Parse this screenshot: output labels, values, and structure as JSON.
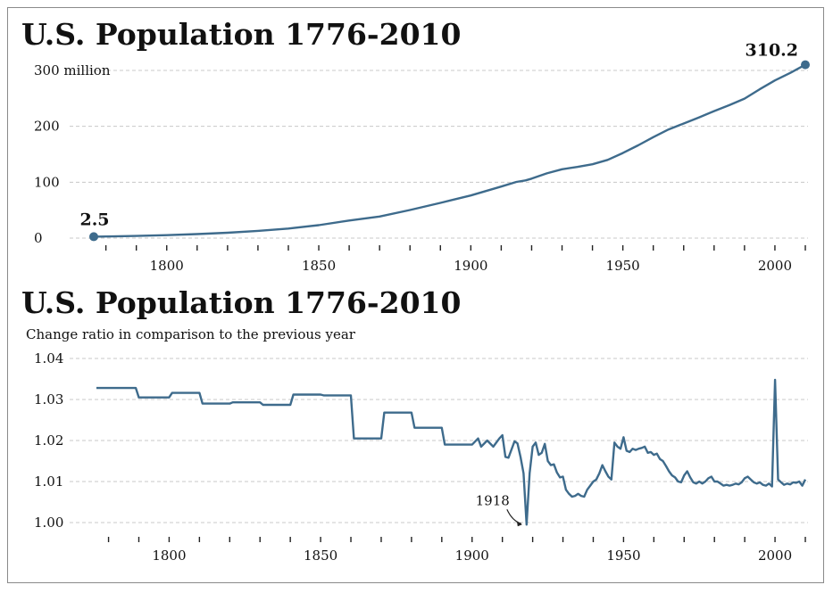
{
  "colors": {
    "line": "#3e6b8c",
    "text": "#111111",
    "grid": "#c8c8c8",
    "frame": "#8a8a8a"
  },
  "chart_data": [
    {
      "type": "line",
      "title": "U.S. Population 1776-2010",
      "subtitle": "",
      "xlim": [
        1776,
        2010
      ],
      "ylim": [
        0,
        310
      ],
      "x_ticks": [
        1800,
        1850,
        1900,
        1950,
        2000
      ],
      "x_minor_step": 10,
      "y_ticks": [
        0,
        100,
        200,
        300
      ],
      "y_tick_labels": [
        "0",
        "100",
        "200",
        "300 million"
      ],
      "grid": true,
      "annotations": [
        {
          "x": 1776,
          "y": 2.5,
          "label": "2.5"
        },
        {
          "x": 2010,
          "y": 310.2,
          "label": "310.2"
        }
      ],
      "x": [
        1776,
        1780,
        1790,
        1800,
        1810,
        1820,
        1830,
        1840,
        1850,
        1860,
        1870,
        1880,
        1890,
        1900,
        1910,
        1915,
        1918,
        1920,
        1925,
        1930,
        1935,
        1940,
        1945,
        1950,
        1955,
        1960,
        1965,
        1970,
        1975,
        1980,
        1985,
        1990,
        1995,
        1999,
        2000,
        2005,
        2010
      ],
      "y": [
        2.5,
        2.8,
        3.9,
        5.3,
        7.2,
        9.6,
        12.9,
        17.1,
        23.2,
        31.4,
        38.6,
        50.2,
        63.0,
        76.2,
        92.2,
        100.5,
        103.2,
        106.5,
        115.8,
        123.2,
        127.3,
        132.2,
        139.9,
        152.3,
        165.9,
        180.7,
        194.3,
        205.1,
        215.9,
        227.2,
        237.9,
        249.6,
        266.3,
        279.0,
        282.2,
        295.5,
        310.2
      ]
    },
    {
      "type": "line",
      "title": "U.S. Population 1776-2010",
      "subtitle": "Change ratio in comparison to the previous year",
      "xlim": [
        1776,
        2010
      ],
      "ylim": [
        0.997,
        1.04
      ],
      "x_ticks": [
        1800,
        1850,
        1900,
        1950,
        2000
      ],
      "x_minor_step": 10,
      "y_ticks": [
        1.0,
        1.01,
        1.02,
        1.03,
        1.04
      ],
      "y_tick_labels": [
        "1.00",
        "1.01",
        "1.02",
        "1.03",
        "1.04"
      ],
      "grid": true,
      "annotations": [
        {
          "x": 1918,
          "y": 0.9995,
          "label": "1918"
        }
      ],
      "x": [
        1776,
        1789,
        1790,
        1800,
        1801,
        1810,
        1811,
        1820,
        1821,
        1830,
        1831,
        1840,
        1841,
        1850,
        1851,
        1860,
        1861,
        1870,
        1871,
        1880,
        1881,
        1890,
        1891,
        1900,
        1902,
        1903,
        1905,
        1907,
        1909,
        1910,
        1911,
        1912,
        1914,
        1915,
        1916,
        1917,
        1918,
        1919,
        1920,
        1921,
        1922,
        1923,
        1924,
        1925,
        1926,
        1927,
        1928,
        1929,
        1930,
        1931,
        1932,
        1933,
        1934,
        1935,
        1936,
        1937,
        1938,
        1939,
        1940,
        1941,
        1942,
        1943,
        1944,
        1945,
        1946,
        1947,
        1948,
        1949,
        1950,
        1951,
        1952,
        1953,
        1954,
        1955,
        1956,
        1957,
        1958,
        1959,
        1960,
        1961,
        1962,
        1963,
        1964,
        1965,
        1966,
        1967,
        1968,
        1969,
        1970,
        1971,
        1972,
        1973,
        1974,
        1975,
        1976,
        1977,
        1978,
        1979,
        1980,
        1981,
        1982,
        1983,
        1984,
        1985,
        1986,
        1987,
        1988,
        1989,
        1990,
        1991,
        1992,
        1993,
        1994,
        1995,
        1996,
        1997,
        1998,
        1999,
        2000,
        2001,
        2002,
        2003,
        2004,
        2005,
        2006,
        2007,
        2008,
        2009,
        2010
      ],
      "y": [
        1.0328,
        1.0328,
        1.0305,
        1.0305,
        1.0316,
        1.0316,
        1.029,
        1.029,
        1.0293,
        1.0293,
        1.0287,
        1.0287,
        1.0312,
        1.0312,
        1.031,
        1.031,
        1.0205,
        1.0205,
        1.0268,
        1.0268,
        1.0231,
        1.0231,
        1.019,
        1.019,
        1.0205,
        1.0185,
        1.02,
        1.0185,
        1.0205,
        1.0213,
        1.016,
        1.0158,
        1.0198,
        1.0193,
        1.016,
        1.012,
        0.9995,
        1.012,
        1.0185,
        1.0195,
        1.0165,
        1.017,
        1.0192,
        1.015,
        1.014,
        1.0142,
        1.0122,
        1.011,
        1.0112,
        1.008,
        1.007,
        1.0063,
        1.0065,
        1.007,
        1.0065,
        1.0063,
        1.008,
        1.009,
        1.01,
        1.0105,
        1.012,
        1.014,
        1.0125,
        1.0112,
        1.0105,
        1.0195,
        1.0185,
        1.018,
        1.0208,
        1.0175,
        1.0172,
        1.018,
        1.0177,
        1.018,
        1.0182,
        1.0185,
        1.017,
        1.0172,
        1.0165,
        1.0168,
        1.0155,
        1.015,
        1.0138,
        1.0125,
        1.0115,
        1.011,
        1.01,
        1.0098,
        1.0115,
        1.0125,
        1.011,
        1.0098,
        1.0095,
        1.01,
        1.0095,
        1.01,
        1.0108,
        1.0112,
        1.01,
        1.01,
        1.0095,
        1.009,
        1.0092,
        1.009,
        1.0092,
        1.0095,
        1.0093,
        1.0098,
        1.0108,
        1.0112,
        1.0105,
        1.0098,
        1.0095,
        1.0098,
        1.0092,
        1.009,
        1.0095,
        1.0088,
        1.0348,
        1.0105,
        1.0098,
        1.0092,
        1.0095,
        1.0093,
        1.0098,
        1.0097,
        1.01,
        1.009,
        1.0105
      ]
    }
  ]
}
